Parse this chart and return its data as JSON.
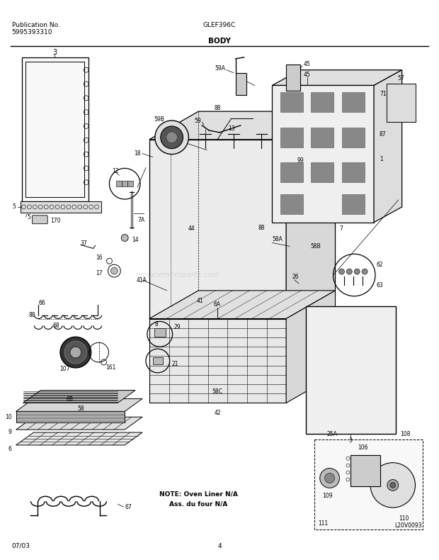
{
  "title_left_line1": "Publication No.",
  "title_left_line2": "5995393310",
  "title_center": "GLEF396C",
  "title_section": "BODY",
  "footer_left": "07/03",
  "footer_center": "4",
  "watermark": "replacementparts.com",
  "bg_color": "#ffffff",
  "line_color": "#000000",
  "figsize": [
    6.2,
    7.9
  ],
  "dpi": 100
}
